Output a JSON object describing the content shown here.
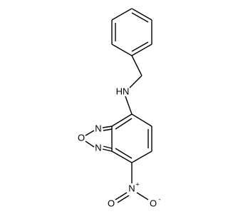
{
  "atoms": [
    {
      "label": "HN"
    },
    {
      "label": "N"
    },
    {
      "label": "O"
    },
    {
      "label": "N"
    },
    {
      "label": "N",
      "charge": "+"
    },
    {
      "label": "O"
    },
    {
      "label": "O",
      "charge": "-"
    }
  ]
}
